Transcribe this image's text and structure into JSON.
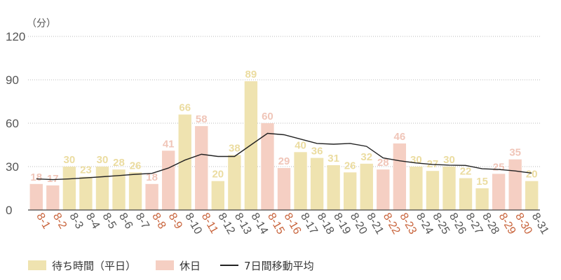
{
  "chart_data": {
    "type": "bar",
    "unit_label": "（分）",
    "yticks": [
      0,
      30,
      60,
      90,
      120
    ],
    "ylim": [
      0,
      120
    ],
    "grid": true,
    "categories": [
      "8-1",
      "8-2",
      "8-3",
      "8-4",
      "8-5",
      "8-6",
      "8-7",
      "8-8",
      "8-9",
      "8-10",
      "8-11",
      "8-12",
      "8-13",
      "8-14",
      "8-15",
      "8-16",
      "8-17",
      "8-18",
      "8-19",
      "8-20",
      "8-21",
      "8-22",
      "8-23",
      "8-24",
      "8-25",
      "8-26",
      "8-27",
      "8-28",
      "8-29",
      "8-30",
      "8-31"
    ],
    "values": [
      18,
      17,
      30,
      23,
      30,
      28,
      26,
      18,
      41,
      66,
      58,
      20,
      38,
      89,
      60,
      29,
      40,
      36,
      31,
      26,
      32,
      28,
      46,
      30,
      27,
      30,
      22,
      15,
      25,
      35,
      20
    ],
    "holiday": [
      true,
      true,
      false,
      false,
      false,
      false,
      false,
      true,
      true,
      false,
      true,
      false,
      false,
      false,
      true,
      true,
      false,
      false,
      false,
      false,
      false,
      true,
      true,
      false,
      false,
      false,
      false,
      false,
      true,
      true,
      false
    ],
    "moving_average": [
      21.5,
      21,
      21.5,
      22.2,
      23,
      23.8,
      24.7,
      25.3,
      29,
      34.5,
      38.5,
      37,
      37,
      45,
      53,
      52,
      49,
      46,
      45.5,
      46,
      44,
      36,
      34,
      32.5,
      31.5,
      31,
      30.8,
      28.5,
      28,
      27,
      25.5
    ],
    "series": [
      {
        "name": "待ち時間（平日）",
        "color": "#efe3b0",
        "label_color": "#ebdca0"
      },
      {
        "name": "休日",
        "color": "#f5cfc3",
        "label_color": "#f0c5b8"
      },
      {
        "name": "7日間移動平均",
        "color": "#222222"
      }
    ],
    "weekday_tick_color": "#555555",
    "holiday_tick_color": "#c8643c",
    "axis_color": "#444444",
    "grid_color": "#bbbbbb"
  }
}
